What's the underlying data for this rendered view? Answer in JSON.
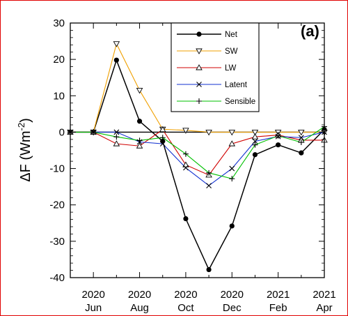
{
  "chart_data": {
    "type": "line",
    "title": "",
    "panel_label": "(a)",
    "ylabel_main": "ΔF (Wm",
    "ylabel_exp": "-2",
    "ylabel_close": ")",
    "xlabel": "",
    "ylim": [
      -40,
      30
    ],
    "xlim": [
      0,
      11
    ],
    "yticks": [
      30,
      20,
      10,
      0,
      -10,
      -20,
      -30,
      -40
    ],
    "x_ticks": [
      {
        "x": 1,
        "year": "2020",
        "month": "Jun"
      },
      {
        "x": 3,
        "year": "2020",
        "month": "Aug"
      },
      {
        "x": 5,
        "year": "2020",
        "month": "Oct"
      },
      {
        "x": 7,
        "year": "2020",
        "month": "Dec"
      },
      {
        "x": 9,
        "year": "2021",
        "month": "Feb"
      },
      {
        "x": 11,
        "year": "2021",
        "month": "Apr"
      }
    ],
    "x": [
      0,
      1,
      2,
      3,
      4,
      5,
      6,
      7,
      8,
      9,
      10,
      11
    ],
    "legend_position": "top-right",
    "series": [
      {
        "name": "Net",
        "color": "#000000",
        "marker": "dot",
        "values": [
          0,
          0,
          19.8,
          3,
          -2.5,
          -23.8,
          -37.8,
          -25.8,
          -6.2,
          -3.5,
          -5.7,
          0.7
        ]
      },
      {
        "name": "SW",
        "color": "#f0a000",
        "marker": "triangle-down",
        "values": [
          0,
          0,
          24.3,
          11.5,
          0.8,
          0.5,
          0,
          0,
          0,
          0,
          0,
          0
        ]
      },
      {
        "name": "LW",
        "color": "#d00000",
        "marker": "triangle-up",
        "values": [
          0,
          0,
          -3.2,
          -3.8,
          0.7,
          -9,
          -11.8,
          -3.2,
          -1.3,
          -0.8,
          -2.2,
          -2.2
        ]
      },
      {
        "name": "Latent",
        "color": "#1030d0",
        "marker": "x",
        "values": [
          0,
          0,
          0,
          -2.7,
          -3.2,
          -9.8,
          -14.7,
          -10,
          -2.5,
          -1.2,
          -1.5,
          0
        ]
      },
      {
        "name": "Sensible",
        "color": "#00c000",
        "marker": "plus",
        "values": [
          0,
          0,
          -1.3,
          -2.3,
          -1.5,
          -6,
          -11.2,
          -12.8,
          -3.5,
          -1,
          -2.8,
          1.5
        ]
      }
    ]
  }
}
